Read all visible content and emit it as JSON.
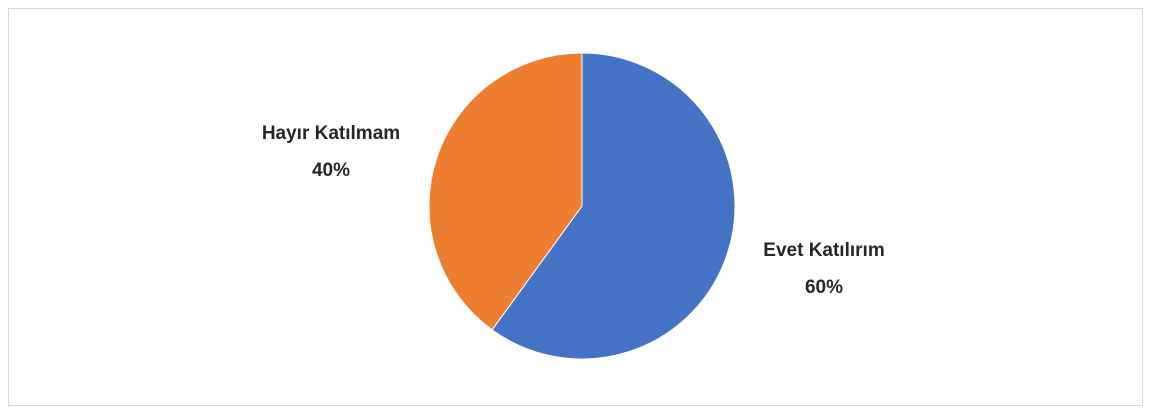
{
  "chart_data": {
    "type": "pie",
    "title": "",
    "slices": [
      {
        "label": "Evet Katılırım",
        "value": 60,
        "value_label": "60%",
        "color": "#4472C4"
      },
      {
        "label": "Hayır Katılmam",
        "value": 40,
        "value_label": "40%",
        "color": "#ED7D31"
      }
    ],
    "start_angle": "12 o'clock",
    "direction": "clockwise",
    "legend": "none",
    "data_labels": "outside"
  }
}
